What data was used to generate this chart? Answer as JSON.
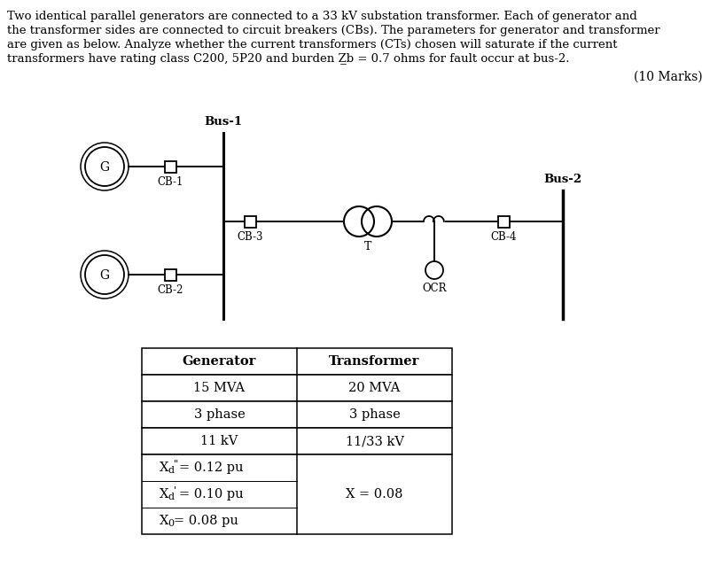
{
  "bg_color": "#ffffff",
  "text_color": "#000000",
  "para_lines": [
    "Two identical parallel generators are connected to a 33 kV substation transformer. Each of generator and",
    "the transformer sides are connected to circuit breakers (CBs). The parameters for generator and transformer",
    "are given as below. Analyze whether the current transformers (CTs) chosen will saturate if the current",
    "transformers have rating class C200, 5P20 and burden Z̲b = 0.7 ohms for fault occur at bus-2."
  ],
  "marks_text": "(10 Marks)",
  "bus1_label": "Bus-1",
  "bus2_label": "Bus-2",
  "cb1_label": "CB-1",
  "cb2_label": "CB-2",
  "cb3_label": "CB-3",
  "cb4_label": "CB-4",
  "t_label": "T",
  "ocr_label": "OCR",
  "g_label": "G",
  "table_headers": [
    "Generator",
    "Transformer"
  ],
  "font_size_body": 9.5,
  "font_size_table": 10.5,
  "font_size_label": 8.5,
  "font_size_bus": 9.5,
  "font_size_marks": 10.0
}
